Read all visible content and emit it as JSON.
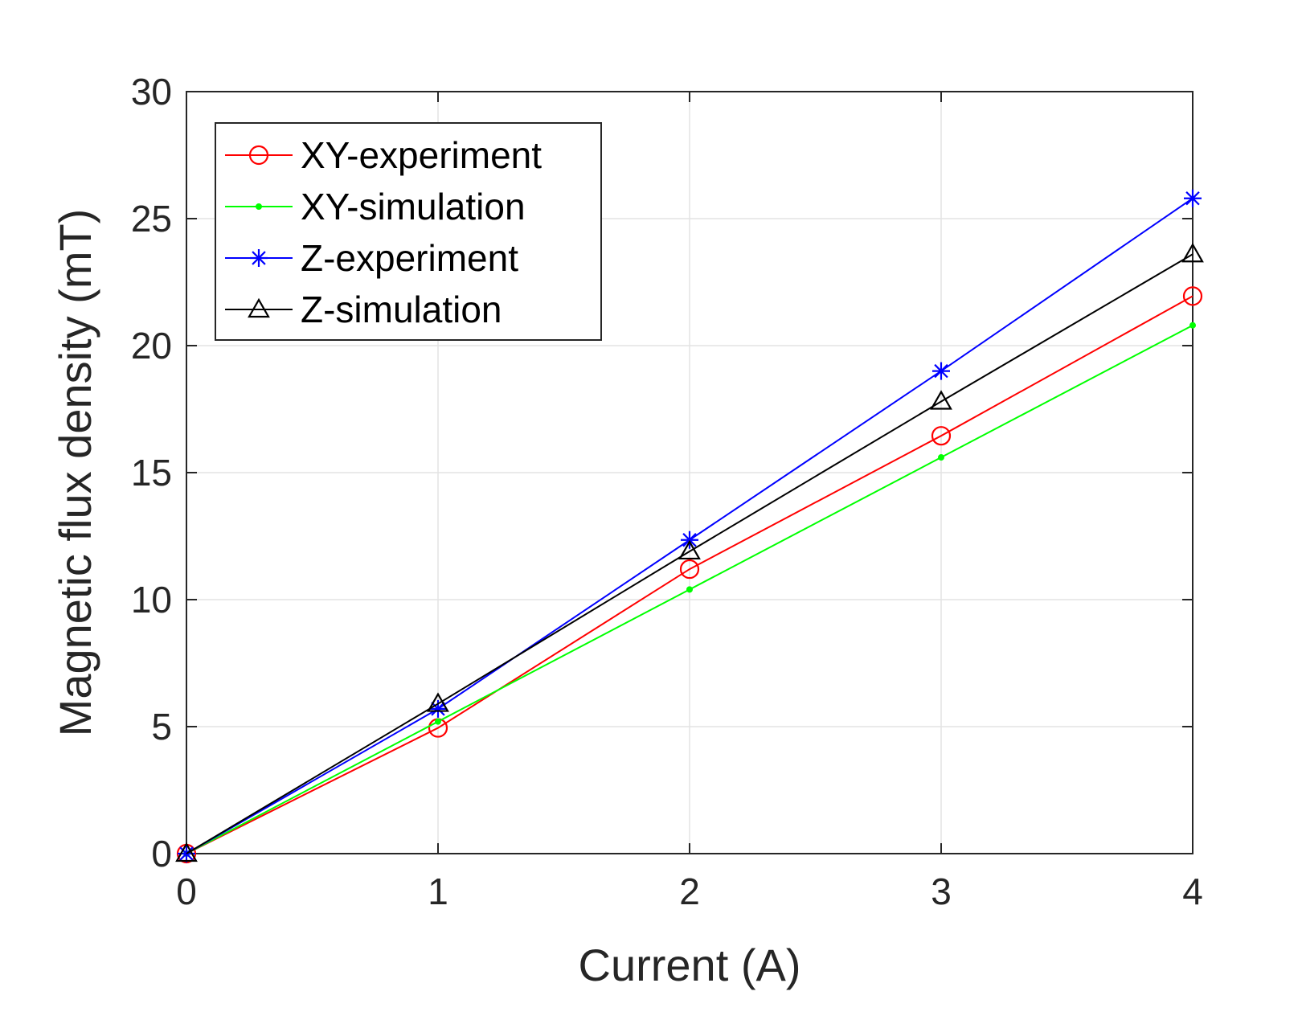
{
  "chart_data": {
    "type": "line",
    "title": "",
    "xlabel": "Current (A)",
    "ylabel": "Magnetic flux density (mT)",
    "x": [
      0,
      1,
      2,
      3,
      4
    ],
    "xlim": [
      0,
      4
    ],
    "ylim": [
      0,
      30
    ],
    "xticks": [
      0,
      1,
      2,
      3,
      4
    ],
    "yticks": [
      0,
      5,
      10,
      15,
      20,
      25,
      30
    ],
    "grid": true,
    "legend_position": "top-left",
    "series": [
      {
        "name": "XY-experiment",
        "values": [
          0,
          4.95,
          11.2,
          16.45,
          21.95
        ],
        "color": "#ff0000",
        "marker": "circle"
      },
      {
        "name": "XY-simulation",
        "values": [
          0,
          5.2,
          10.4,
          15.6,
          20.8
        ],
        "color": "#00ff00",
        "marker": "dot"
      },
      {
        "name": "Z-experiment",
        "values": [
          0,
          5.7,
          12.35,
          19.0,
          25.8
        ],
        "color": "#0000ff",
        "marker": "asterisk"
      },
      {
        "name": "Z-simulation",
        "values": [
          0,
          5.9,
          11.9,
          17.8,
          23.6
        ],
        "color": "#000000",
        "marker": "triangle"
      }
    ]
  }
}
